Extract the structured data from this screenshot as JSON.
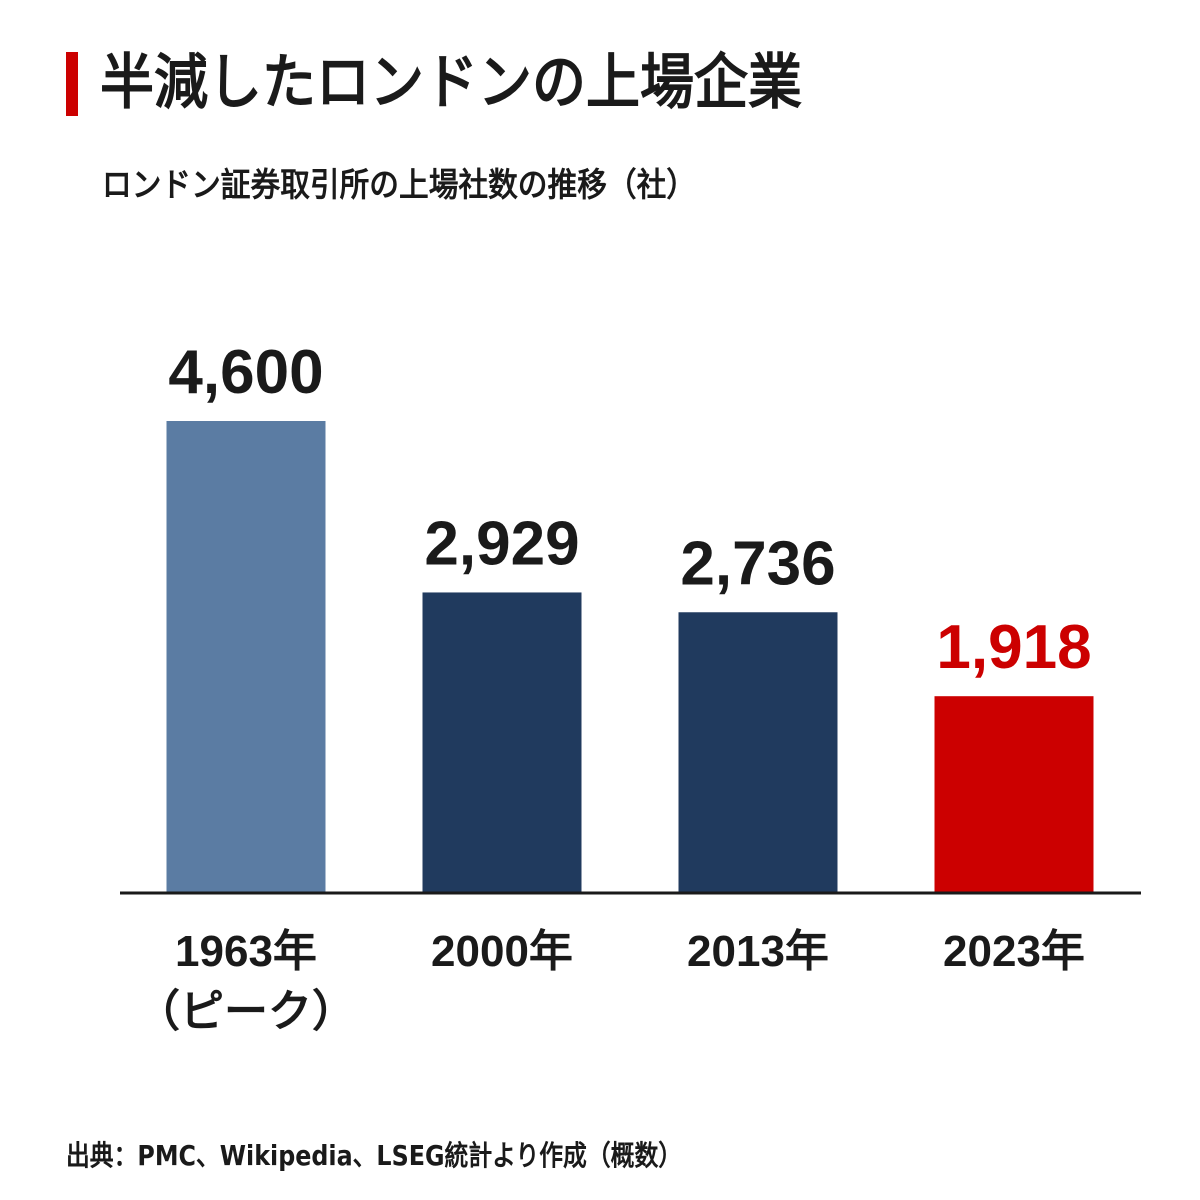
{
  "title": "半減したロンドンの上場企業",
  "subtitle": "ロンドン証券取引所の上場社数の推移（社）",
  "source": "出典：PMC、Wikipedia、LSEG統計より作成（概数）",
  "colors": {
    "accent": "#cc0000",
    "peak_bar": "#5b7ca3",
    "bar": "#203a5e",
    "highlight_bar": "#cc0000",
    "text": "#1a1a1a",
    "axis": "#1a1a1a"
  },
  "chart_data": {
    "type": "bar",
    "title": "半減したロンドンの上場企業",
    "subtitle": "ロンドン証券取引所の上場社数の推移（社）",
    "categories": [
      "1963年\n（ピーク）",
      "2000年",
      "2013年",
      "2023年"
    ],
    "values": [
      4600,
      2929,
      2736,
      1918
    ],
    "value_labels": [
      "4,600",
      "2,929",
      "2,736",
      "1,918"
    ],
    "bar_colors": [
      "#5b7ca3",
      "#203a5e",
      "#203a5e",
      "#cc0000"
    ],
    "label_colors": [
      "#1a1a1a",
      "#1a1a1a",
      "#1a1a1a",
      "#cc0000"
    ],
    "xlabel": "",
    "ylabel": "",
    "ylim": [
      0,
      4600
    ],
    "grid": false,
    "legend": "none"
  }
}
